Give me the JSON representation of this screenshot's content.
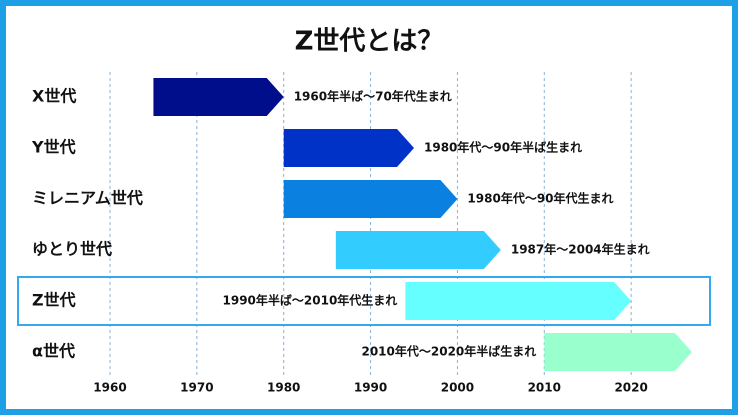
{
  "chart_data": {
    "type": "range-arrow",
    "title": "Z世代とは？",
    "categories": [
      "X世代",
      "Y世代",
      "ミレニアム世代",
      "ゆとり世代",
      "Z世代",
      "α世代"
    ],
    "start": [
      1965,
      1980,
      1980,
      1986,
      1994,
      2010
    ],
    "end": [
      1980,
      1995,
      2000,
      2005,
      2020,
      2027
    ],
    "labels": [
      "1960年半ば～70年代生まれ",
      "1980年代～90年半ば生まれ",
      "1980年代～90年代生まれ",
      "1987年～2004年生まれ",
      "1990年半ば～2010年代生まれ",
      "2010年代～2020年半ば生まれ"
    ],
    "label_side": [
      "right",
      "right",
      "right",
      "right",
      "left",
      "left"
    ],
    "colors": [
      "#000e8c",
      "#0032c8",
      "#0a80e0",
      "#33ccff",
      "#66ffff",
      "#99ffcc"
    ],
    "highlight": 4,
    "xlim": [
      1960,
      2030
    ],
    "xticks": [
      1960,
      1970,
      1980,
      1990,
      2000,
      2010,
      2020
    ],
    "grid": true
  }
}
